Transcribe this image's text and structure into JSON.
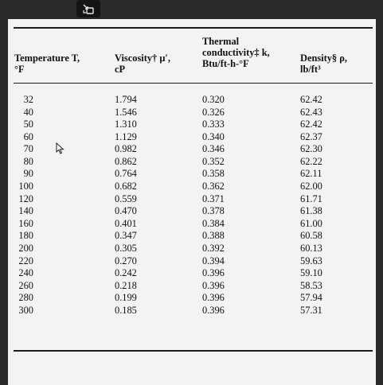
{
  "table": {
    "headers": {
      "temperature": [
        "Temperature T,",
        "°F"
      ],
      "viscosity": [
        "Viscosity† μ′,",
        "cP"
      ],
      "conductivity": [
        "Thermal",
        "conductivity‡ k,",
        "Btu/ft-h-°F"
      ],
      "density": [
        "Density§ ρ,",
        "lb/ft³"
      ]
    },
    "rows": [
      {
        "temperature": "32",
        "viscosity": "1.794",
        "conductivity": "0.320",
        "density": "62.42"
      },
      {
        "temperature": "40",
        "viscosity": "1.546",
        "conductivity": "0.326",
        "density": "62.43"
      },
      {
        "temperature": "50",
        "viscosity": "1.310",
        "conductivity": "0.333",
        "density": "62.42"
      },
      {
        "temperature": "60",
        "viscosity": "1.129",
        "conductivity": "0.340",
        "density": "62.37"
      },
      {
        "temperature": "70",
        "viscosity": "0.982",
        "conductivity": "0.346",
        "density": "62.30"
      },
      {
        "temperature": "80",
        "viscosity": "0.862",
        "conductivity": "0.352",
        "density": "62.22"
      },
      {
        "temperature": "90",
        "viscosity": "0.764",
        "conductivity": "0.358",
        "density": "62.11"
      },
      {
        "temperature": "100",
        "viscosity": "0.682",
        "conductivity": "0.362",
        "density": "62.00"
      },
      {
        "temperature": "120",
        "viscosity": "0.559",
        "conductivity": "0.371",
        "density": "61.71"
      },
      {
        "temperature": "140",
        "viscosity": "0.470",
        "conductivity": "0.378",
        "density": "61.38"
      },
      {
        "temperature": "160",
        "viscosity": "0.401",
        "conductivity": "0.384",
        "density": "61.00"
      },
      {
        "temperature": "180",
        "viscosity": "0.347",
        "conductivity": "0.388",
        "density": "60.58"
      },
      {
        "temperature": "200",
        "viscosity": "0.305",
        "conductivity": "0.392",
        "density": "60.13"
      },
      {
        "temperature": "220",
        "viscosity": "0.270",
        "conductivity": "0.394",
        "density": "59.63"
      },
      {
        "temperature": "240",
        "viscosity": "0.242",
        "conductivity": "0.396",
        "density": "59.10"
      },
      {
        "temperature": "260",
        "viscosity": "0.218",
        "conductivity": "0.396",
        "density": "58.53"
      },
      {
        "temperature": "280",
        "viscosity": "0.199",
        "conductivity": "0.396",
        "density": "57.94"
      },
      {
        "temperature": "300",
        "viscosity": "0.185",
        "conductivity": "0.396",
        "density": "57.31"
      }
    ]
  },
  "icons": {
    "badge": "exit-fullscreen-icon",
    "cursor": "mouse-pointer-icon"
  },
  "colors": {
    "viewer_background": "#2b2b2b",
    "page_background": "#f3f3f3",
    "text": "#111111"
  }
}
